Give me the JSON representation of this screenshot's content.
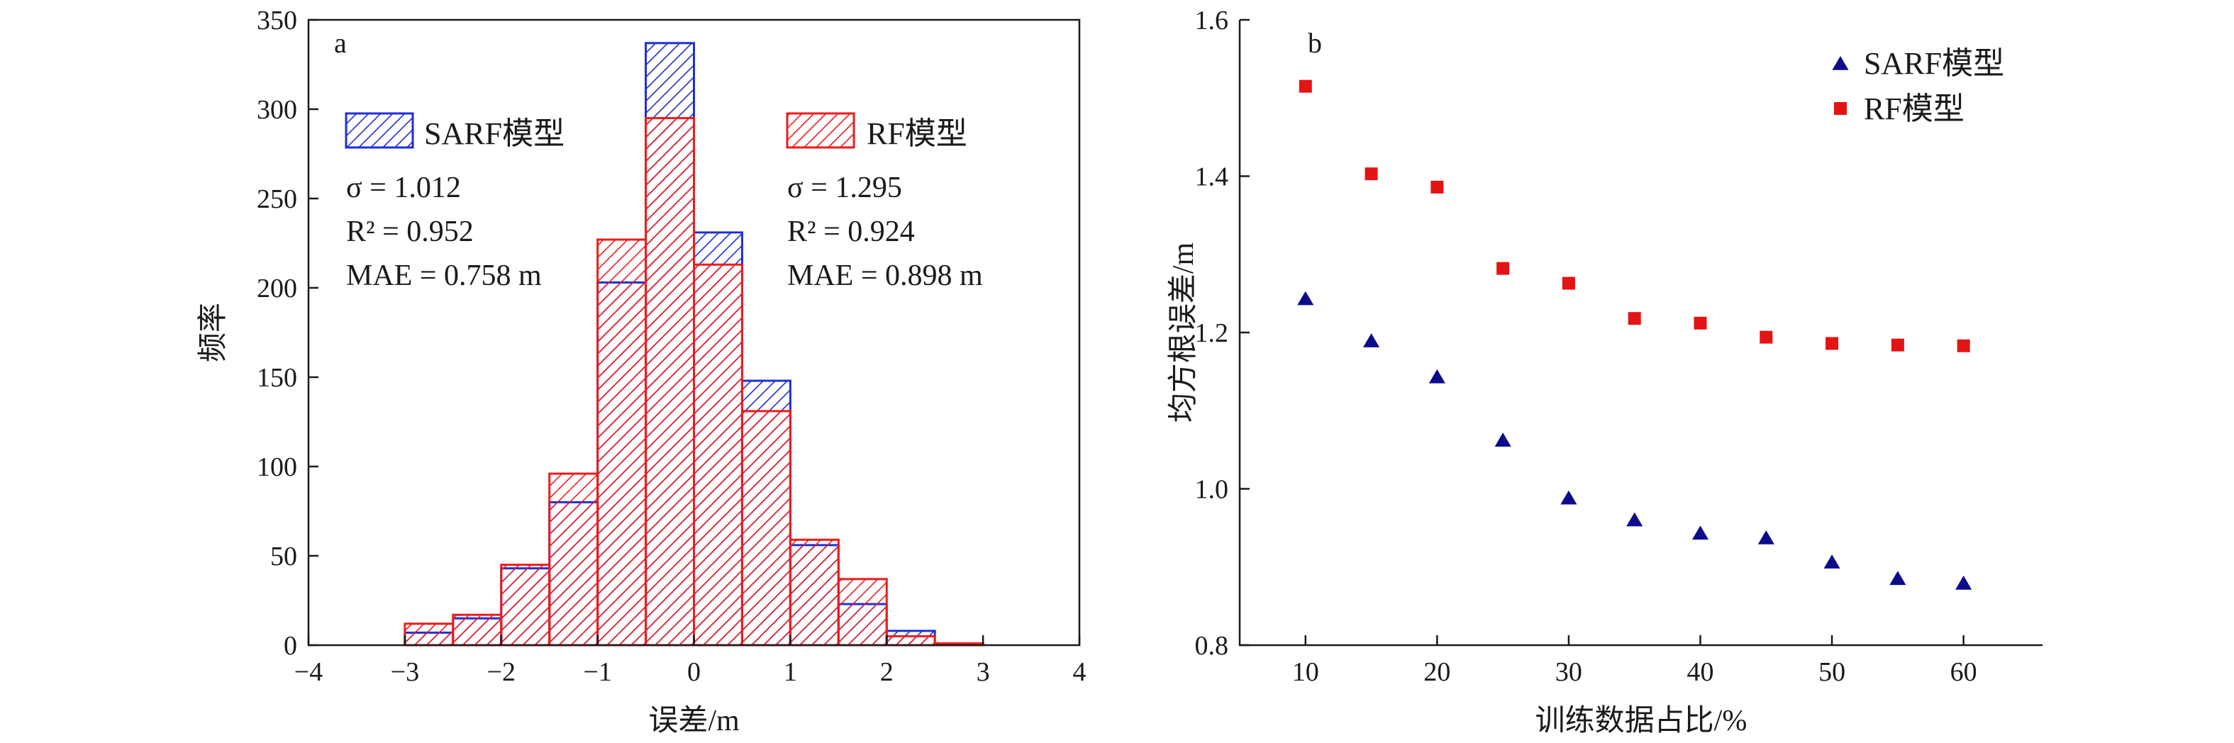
{
  "figure": {
    "panel_a_letter": "a",
    "panel_b_letter": "b",
    "colors": {
      "sarf": "#1f2fd6",
      "rf": "#ee1c1c",
      "sarf_marker": "#0b0b8c",
      "rf_marker": "#e41414",
      "axis": "#1a1a1a"
    }
  },
  "chart_data": [
    {
      "type": "bar",
      "subtype": "overlaid-histogram",
      "xlabel": "误差/m",
      "ylabel": "频率",
      "xlim": [
        -4,
        4
      ],
      "ylim": [
        0,
        350
      ],
      "xticks": [
        -4,
        -3,
        -2,
        -1,
        0,
        1,
        2,
        3,
        4
      ],
      "xtick_labels": [
        "−4",
        "−3",
        "−2",
        "−1",
        "0",
        "1",
        "2",
        "3",
        "4"
      ],
      "yticks": [
        0,
        50,
        100,
        150,
        200,
        250,
        300,
        350
      ],
      "bin_width": 0.5,
      "bin_starts": [
        -3.0,
        -2.5,
        -2.0,
        -1.5,
        -1.0,
        -0.5,
        0.0,
        0.5,
        1.0,
        1.5,
        2.0,
        2.5,
        3.0
      ],
      "legend_position": "top",
      "series": [
        {
          "name": "SARF模型",
          "values": [
            7,
            15,
            43,
            80,
            203,
            337,
            231,
            148,
            56,
            23,
            8,
            1,
            0
          ],
          "stats": [
            "σ = 1.012",
            "R² = 0.952",
            "MAE = 0.758 m"
          ]
        },
        {
          "name": "RF模型",
          "values": [
            12,
            17,
            45,
            96,
            227,
            295,
            213,
            131,
            59,
            37,
            5,
            1,
            0
          ],
          "stats": [
            "σ = 1.295",
            "R² = 0.924",
            "MAE = 0.898 m"
          ]
        }
      ]
    },
    {
      "type": "scatter",
      "xlabel": "训练数据占比/%",
      "ylabel": "均方根误差/m",
      "xlim": [
        5,
        66
      ],
      "ylim": [
        0.8,
        1.6
      ],
      "xticks": [
        10,
        20,
        30,
        40,
        50,
        60
      ],
      "yticks": [
        0.8,
        1.0,
        1.2,
        1.4,
        1.6
      ],
      "ytick_labels": [
        "0.8",
        "1.0",
        "1.2",
        "1.4",
        "1.6"
      ],
      "legend_position": "top-right",
      "x": [
        10,
        15,
        20,
        25,
        30,
        35,
        40,
        45,
        50,
        55,
        60
      ],
      "series": [
        {
          "name": "SARF模型",
          "marker": "triangle",
          "values": [
            1.243,
            1.189,
            1.143,
            1.062,
            0.988,
            0.96,
            0.943,
            0.937,
            0.906,
            0.885,
            0.879
          ]
        },
        {
          "name": "RF模型",
          "marker": "square",
          "values": [
            1.515,
            1.403,
            1.386,
            1.282,
            1.263,
            1.218,
            1.212,
            1.194,
            1.186,
            1.184,
            1.183
          ]
        }
      ]
    }
  ]
}
